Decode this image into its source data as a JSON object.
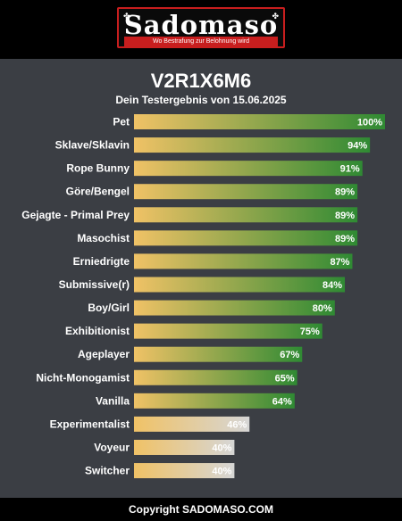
{
  "header": {
    "logo_text": "Sadomaso",
    "tagline": "Wo Bestrafung zur Belohnung wird"
  },
  "result": {
    "code": "V2R1X6M6",
    "subtitle": "Dein Testergebnis von 15.06.2025"
  },
  "footer": {
    "copyright": "Copyright SADOMASO.COM"
  },
  "colors": {
    "bar_start": "#f0c266",
    "high_end": "#2f8a33",
    "low_end": "#d6d6d6",
    "panel": "#3b3e44",
    "brand_red": "#c81e1e"
  },
  "chart_data": {
    "type": "bar",
    "orientation": "horizontal",
    "unit": "%",
    "xlim": [
      0,
      100
    ],
    "categories": [
      "Pet",
      "Sklave/Sklavin",
      "Rope Bunny",
      "Göre/Bengel",
      "Gejagte - Primal Prey",
      "Masochist",
      "Erniedrigte",
      "Submissive(r)",
      "Boy/Girl",
      "Exhibitionist",
      "Ageplayer",
      "Nicht-Monogamist",
      "Vanilla",
      "Experimentalist",
      "Voyeur",
      "Switcher"
    ],
    "values": [
      100,
      94,
      91,
      89,
      89,
      89,
      87,
      84,
      80,
      75,
      67,
      65,
      64,
      46,
      40,
      40
    ],
    "labels": [
      "100%",
      "94%",
      "91%",
      "89%",
      "89%",
      "89%",
      "87%",
      "84%",
      "80%",
      "75%",
      "67%",
      "65%",
      "64%",
      "46%",
      "40%",
      "40%"
    ]
  }
}
